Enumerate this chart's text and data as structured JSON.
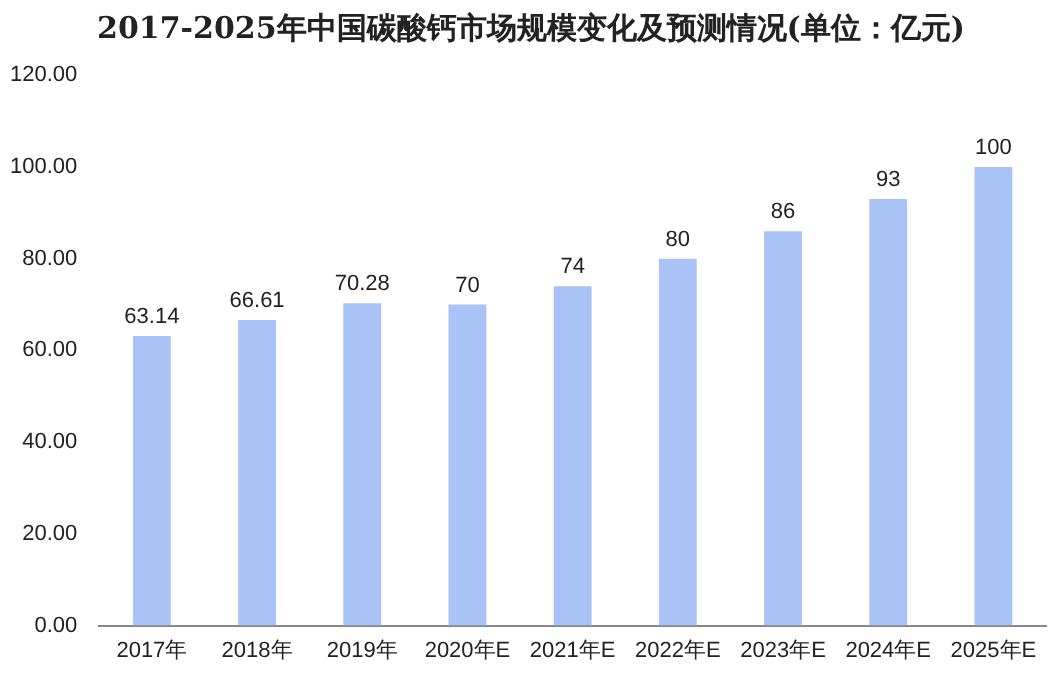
{
  "chart_data": {
    "type": "bar",
    "title": "2017-2025年中国碳酸钙市场规模变化及预测情况(单位：亿元)",
    "categories": [
      "2017年",
      "2018年",
      "2019年",
      "2020年E",
      "2021年E",
      "2022年E",
      "2023年E",
      "2024年E",
      "2025年E"
    ],
    "values": [
      63.14,
      66.61,
      70.28,
      70,
      74,
      80,
      86,
      93,
      100
    ],
    "color": "#a9c3f7",
    "ylim": [
      0,
      120
    ],
    "yticks": [
      {
        "value": 0,
        "label": "0.00"
      },
      {
        "value": 20,
        "label": "20.00"
      },
      {
        "value": 40,
        "label": "40.00"
      },
      {
        "value": 60,
        "label": "60.00"
      },
      {
        "value": 80,
        "label": "80.00"
      },
      {
        "value": 100,
        "label": "100.00"
      },
      {
        "value": 120,
        "label": "120.00"
      }
    ],
    "grid": false,
    "legend": false,
    "data_labels": true
  }
}
